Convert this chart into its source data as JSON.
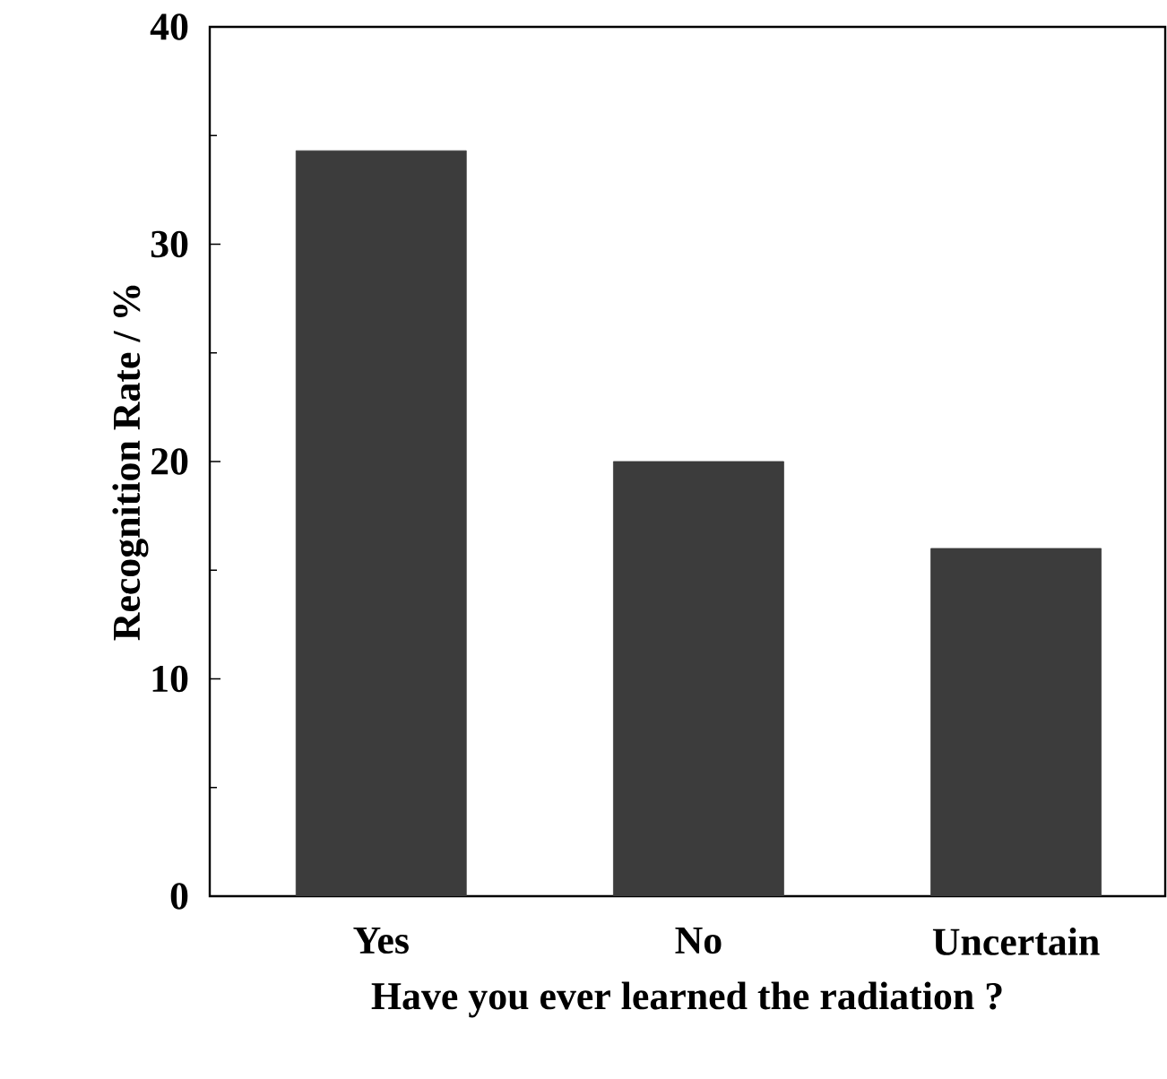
{
  "chart_data": {
    "type": "bar",
    "categories": [
      "Yes",
      "No",
      "Uncertain"
    ],
    "values": [
      34.3,
      20,
      16
    ],
    "color": "#3c3c3c",
    "xlabel": "Have you ever learned the radiation ?",
    "ylabel": "Recognition Rate / %",
    "ylim": [
      0,
      40
    ],
    "yticks": [
      0,
      10,
      20,
      30,
      40
    ]
  }
}
